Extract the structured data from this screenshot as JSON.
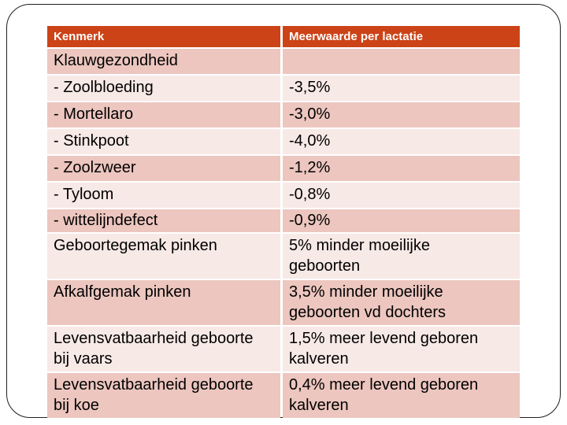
{
  "theme": {
    "header_bg": "#cb4317",
    "header_text": "#ffffff",
    "row_dark": "#ecc6bf",
    "row_light": "#f7e9e6",
    "body_text": "#000000",
    "frame_border": "#1f1f1f",
    "slide_background": "#ffffff"
  },
  "table": {
    "columns": [
      "Kenmerk",
      "Meerwaarde per lactatie"
    ],
    "rows": [
      {
        "kenmerk": "Klauwgezondheid",
        "waarde": ""
      },
      {
        "kenmerk": "- Zoolbloeding",
        "waarde": "-3,5%"
      },
      {
        "kenmerk": "- Mortellaro",
        "waarde": "-3,0%"
      },
      {
        "kenmerk": "- Stinkpoot",
        "waarde": "-4,0%"
      },
      {
        "kenmerk": "- Zoolzweer",
        "waarde": "-1,2%"
      },
      {
        "kenmerk": "- Tyloom",
        "waarde": "-0,8%"
      },
      {
        "kenmerk": "- wittelijndefect",
        "waarde": "-0,9%"
      },
      {
        "kenmerk": "Geboortegemak pinken",
        "waarde": "5% minder moeilijke\ngeboorten"
      },
      {
        "kenmerk": "Afkalfgemak pinken",
        "waarde": "3,5% minder moeilijke\ngeboorten vd dochters"
      },
      {
        "kenmerk": "Levensvatbaarheid geboorte\nbij vaars",
        "waarde": "1,5% meer levend geboren\nkalveren"
      },
      {
        "kenmerk": "Levensvatbaarheid geboorte\nbij koe",
        "waarde": "0,4% meer levend geboren\nkalveren"
      }
    ]
  }
}
